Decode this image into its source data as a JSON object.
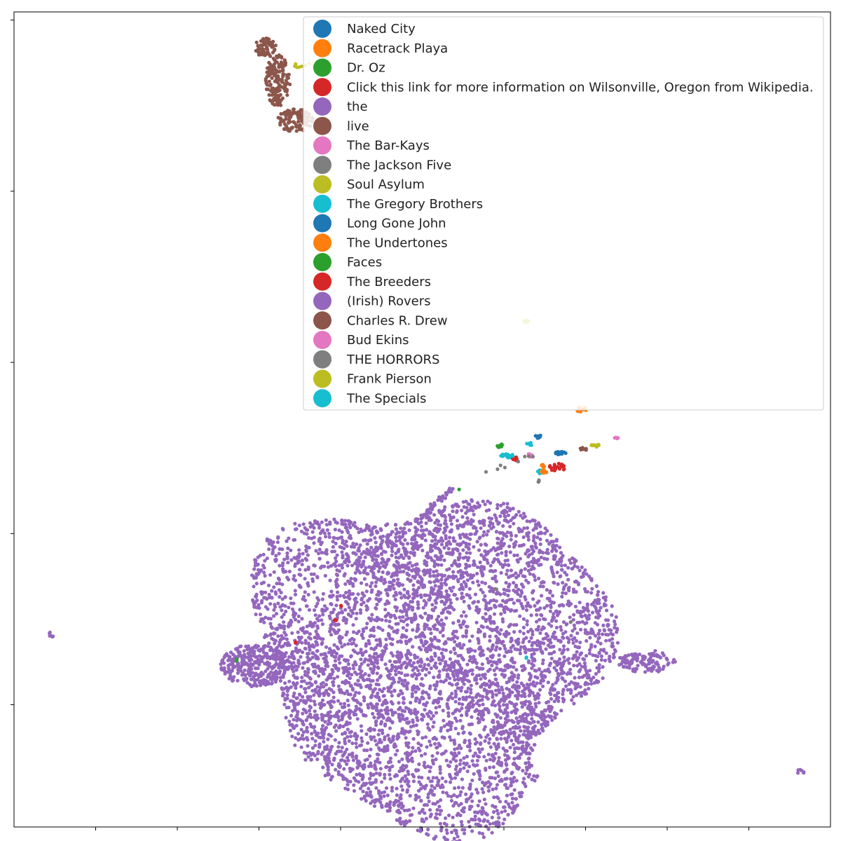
{
  "chart_data": {
    "type": "scatter",
    "title": "",
    "xlabel": "",
    "ylabel": "",
    "xlim": [
      0,
      100
    ],
    "ylim": [
      0,
      100
    ],
    "grid": false,
    "legend_placement": "top-right",
    "xticks": [
      10,
      20,
      30,
      40,
      50,
      60,
      70,
      80,
      90
    ],
    "yticks": [
      15,
      36,
      57,
      78,
      99
    ],
    "series": [
      {
        "name": "Naked City",
        "color": "#1f77b4"
      },
      {
        "name": "Racetrack Playa",
        "color": "#ff7f0e"
      },
      {
        "name": "Dr. Oz",
        "color": "#2ca02c"
      },
      {
        "name": "Click this link for more information on Wilsonville, Oregon from Wikipedia.",
        "color": "#d62728"
      },
      {
        "name": "the",
        "color": "#9467bd"
      },
      {
        "name": "live",
        "color": "#8c564b"
      },
      {
        "name": "The Bar-Kays",
        "color": "#e377c2"
      },
      {
        "name": "The Jackson Five",
        "color": "#7f7f7f"
      },
      {
        "name": "Soul Asylum",
        "color": "#bcbd22"
      },
      {
        "name": "The Gregory Brothers",
        "color": "#17becf"
      },
      {
        "name": "Long Gone John",
        "color": "#1f77b4"
      },
      {
        "name": "The Undertones",
        "color": "#ff7f0e"
      },
      {
        "name": "Faces",
        "color": "#2ca02c"
      },
      {
        "name": "The Breeders",
        "color": "#d62728"
      },
      {
        "name": "(Irish) Rovers",
        "color": "#9467bd"
      },
      {
        "name": "Charles R. Drew",
        "color": "#8c564b"
      },
      {
        "name": "Bud Ekins",
        "color": "#e377c2"
      },
      {
        "name": "THE HORRORS",
        "color": "#7f7f7f"
      },
      {
        "name": "Frank Pierson",
        "color": "#bcbd22"
      },
      {
        "name": "The Specials",
        "color": "#17becf"
      }
    ],
    "clusters": [
      {
        "series": 4,
        "shape": "blob",
        "cx": 51,
        "cy": 21,
        "rx": 21,
        "ry": 20,
        "n": 5200
      },
      {
        "series": 4,
        "shape": "ellipse",
        "cx": 29.5,
        "cy": 19.8,
        "rx": 4.2,
        "ry": 2.6,
        "n": 320
      },
      {
        "series": 4,
        "shape": "ellipse",
        "cx": 77.5,
        "cy": 20.3,
        "rx": 3.6,
        "ry": 1.4,
        "n": 110
      },
      {
        "series": 4,
        "shape": "ellipse",
        "cx": 4.6,
        "cy": 23.6,
        "rx": 0.35,
        "ry": 0.35,
        "n": 6
      },
      {
        "series": 4,
        "shape": "ellipse",
        "cx": 96.3,
        "cy": 6.8,
        "rx": 0.5,
        "ry": 0.3,
        "n": 6
      },
      {
        "series": 4,
        "shape": "ellipse",
        "cx": 63.9,
        "cy": 5.9,
        "rx": 0.6,
        "ry": 0.4,
        "n": 6
      },
      {
        "series": 4,
        "shape": "line",
        "x0": 50,
        "y0": 38,
        "x1": 53.5,
        "y1": 41.4,
        "n": 45
      },
      {
        "series": 5,
        "shape": "ellipse",
        "cx": 32.3,
        "cy": 91.6,
        "rx": 1.5,
        "ry": 3.2,
        "n": 160
      },
      {
        "series": 5,
        "shape": "ellipse",
        "cx": 34.5,
        "cy": 86.7,
        "rx": 2.2,
        "ry": 1.4,
        "n": 110
      },
      {
        "series": 5,
        "shape": "ellipse",
        "cx": 30.8,
        "cy": 95.6,
        "rx": 1.3,
        "ry": 1.2,
        "n": 60
      },
      {
        "series": 0,
        "shape": "ellipse",
        "cx": 64.2,
        "cy": 47.9,
        "rx": 0.4,
        "ry": 0.2,
        "n": 14
      },
      {
        "series": 10,
        "shape": "ellipse",
        "cx": 66.7,
        "cy": 45.9,
        "rx": 0.6,
        "ry": 0.2,
        "n": 16
      },
      {
        "series": 1,
        "shape": "ellipse",
        "cx": 69.5,
        "cy": 51.2,
        "rx": 0.6,
        "ry": 0.35,
        "n": 18
      },
      {
        "series": 2,
        "shape": "ellipse",
        "cx": 59.5,
        "cy": 46.8,
        "rx": 0.3,
        "ry": 0.25,
        "n": 10
      },
      {
        "series": 3,
        "shape": "ellipse",
        "cx": 66.5,
        "cy": 44.1,
        "rx": 1.0,
        "ry": 0.5,
        "n": 22
      },
      {
        "series": 3,
        "shape": "ellipse",
        "cx": 61.3,
        "cy": 45.2,
        "rx": 0.5,
        "ry": 0.3,
        "n": 8
      },
      {
        "series": 9,
        "shape": "ellipse",
        "cx": 60.4,
        "cy": 45.5,
        "rx": 0.8,
        "ry": 0.3,
        "n": 18
      },
      {
        "series": 9,
        "shape": "ellipse",
        "cx": 63.2,
        "cy": 47.0,
        "rx": 0.4,
        "ry": 0.2,
        "n": 8
      },
      {
        "series": 9,
        "shape": "ellipse",
        "cx": 64.4,
        "cy": 43.5,
        "rx": 0.5,
        "ry": 0.3,
        "n": 10
      },
      {
        "series": 1,
        "shape": "ellipse",
        "cx": 64.9,
        "cy": 43.6,
        "rx": 0.4,
        "ry": 0.3,
        "n": 10
      },
      {
        "series": 11,
        "shape": "ellipse",
        "cx": 64.7,
        "cy": 44.3,
        "rx": 0.3,
        "ry": 0.2,
        "n": 6
      },
      {
        "series": 6,
        "shape": "ellipse",
        "cx": 63.2,
        "cy": 45.6,
        "rx": 0.4,
        "ry": 0.2,
        "n": 8
      },
      {
        "series": 6,
        "shape": "ellipse",
        "cx": 73.8,
        "cy": 47.8,
        "rx": 0.3,
        "ry": 0.15,
        "n": 6
      },
      {
        "series": 8,
        "shape": "ellipse",
        "cx": 71.2,
        "cy": 46.8,
        "rx": 0.6,
        "ry": 0.2,
        "n": 10
      },
      {
        "series": 5,
        "shape": "ellipse",
        "cx": 69.8,
        "cy": 46.4,
        "rx": 0.5,
        "ry": 0.2,
        "n": 8
      },
      {
        "series": 7,
        "shape": "line",
        "x0": 57.5,
        "y0": 43.5,
        "x1": 63.5,
        "y1": 45.5,
        "n": 8
      },
      {
        "series": 7,
        "shape": "ellipse",
        "cx": 64.3,
        "cy": 42.5,
        "rx": 0.2,
        "ry": 0.3,
        "n": 4
      },
      {
        "series": 0,
        "shape": "ellipse",
        "cx": 67.1,
        "cy": 45.9,
        "rx": 0.5,
        "ry": 0.15,
        "n": 8
      },
      {
        "series": 8,
        "shape": "ellipse",
        "cx": 62.7,
        "cy": 62.0,
        "rx": 0.4,
        "ry": 0.15,
        "n": 6
      },
      {
        "series": 8,
        "shape": "ellipse",
        "cx": 35.5,
        "cy": 93.5,
        "rx": 1.5,
        "ry": 0.5,
        "n": 10
      },
      {
        "series": 13,
        "shape": "ellipse",
        "cx": 40.0,
        "cy": 27.2,
        "rx": 0.15,
        "ry": 0.15,
        "n": 2
      },
      {
        "series": 13,
        "shape": "ellipse",
        "cx": 39.4,
        "cy": 25.3,
        "rx": 0.15,
        "ry": 0.15,
        "n": 2
      },
      {
        "series": 13,
        "shape": "ellipse",
        "cx": 34.4,
        "cy": 22.7,
        "rx": 0.15,
        "ry": 0.15,
        "n": 2
      },
      {
        "series": 12,
        "shape": "ellipse",
        "cx": 27.3,
        "cy": 20.5,
        "rx": 0.15,
        "ry": 0.15,
        "n": 3
      },
      {
        "series": 12,
        "shape": "ellipse",
        "cx": 54.5,
        "cy": 41.5,
        "rx": 0.1,
        "ry": 0.1,
        "n": 1
      },
      {
        "series": 9,
        "shape": "ellipse",
        "cx": 62.7,
        "cy": 20.8,
        "rx": 0.2,
        "ry": 0.1,
        "n": 2
      },
      {
        "series": 17,
        "shape": "ellipse",
        "cx": 68.2,
        "cy": 25.2,
        "rx": 0.2,
        "ry": 0.1,
        "n": 2
      },
      {
        "series": 17,
        "shape": "ellipse",
        "cx": 58.9,
        "cy": 29.2,
        "rx": 0.2,
        "ry": 0.1,
        "n": 2
      }
    ]
  }
}
